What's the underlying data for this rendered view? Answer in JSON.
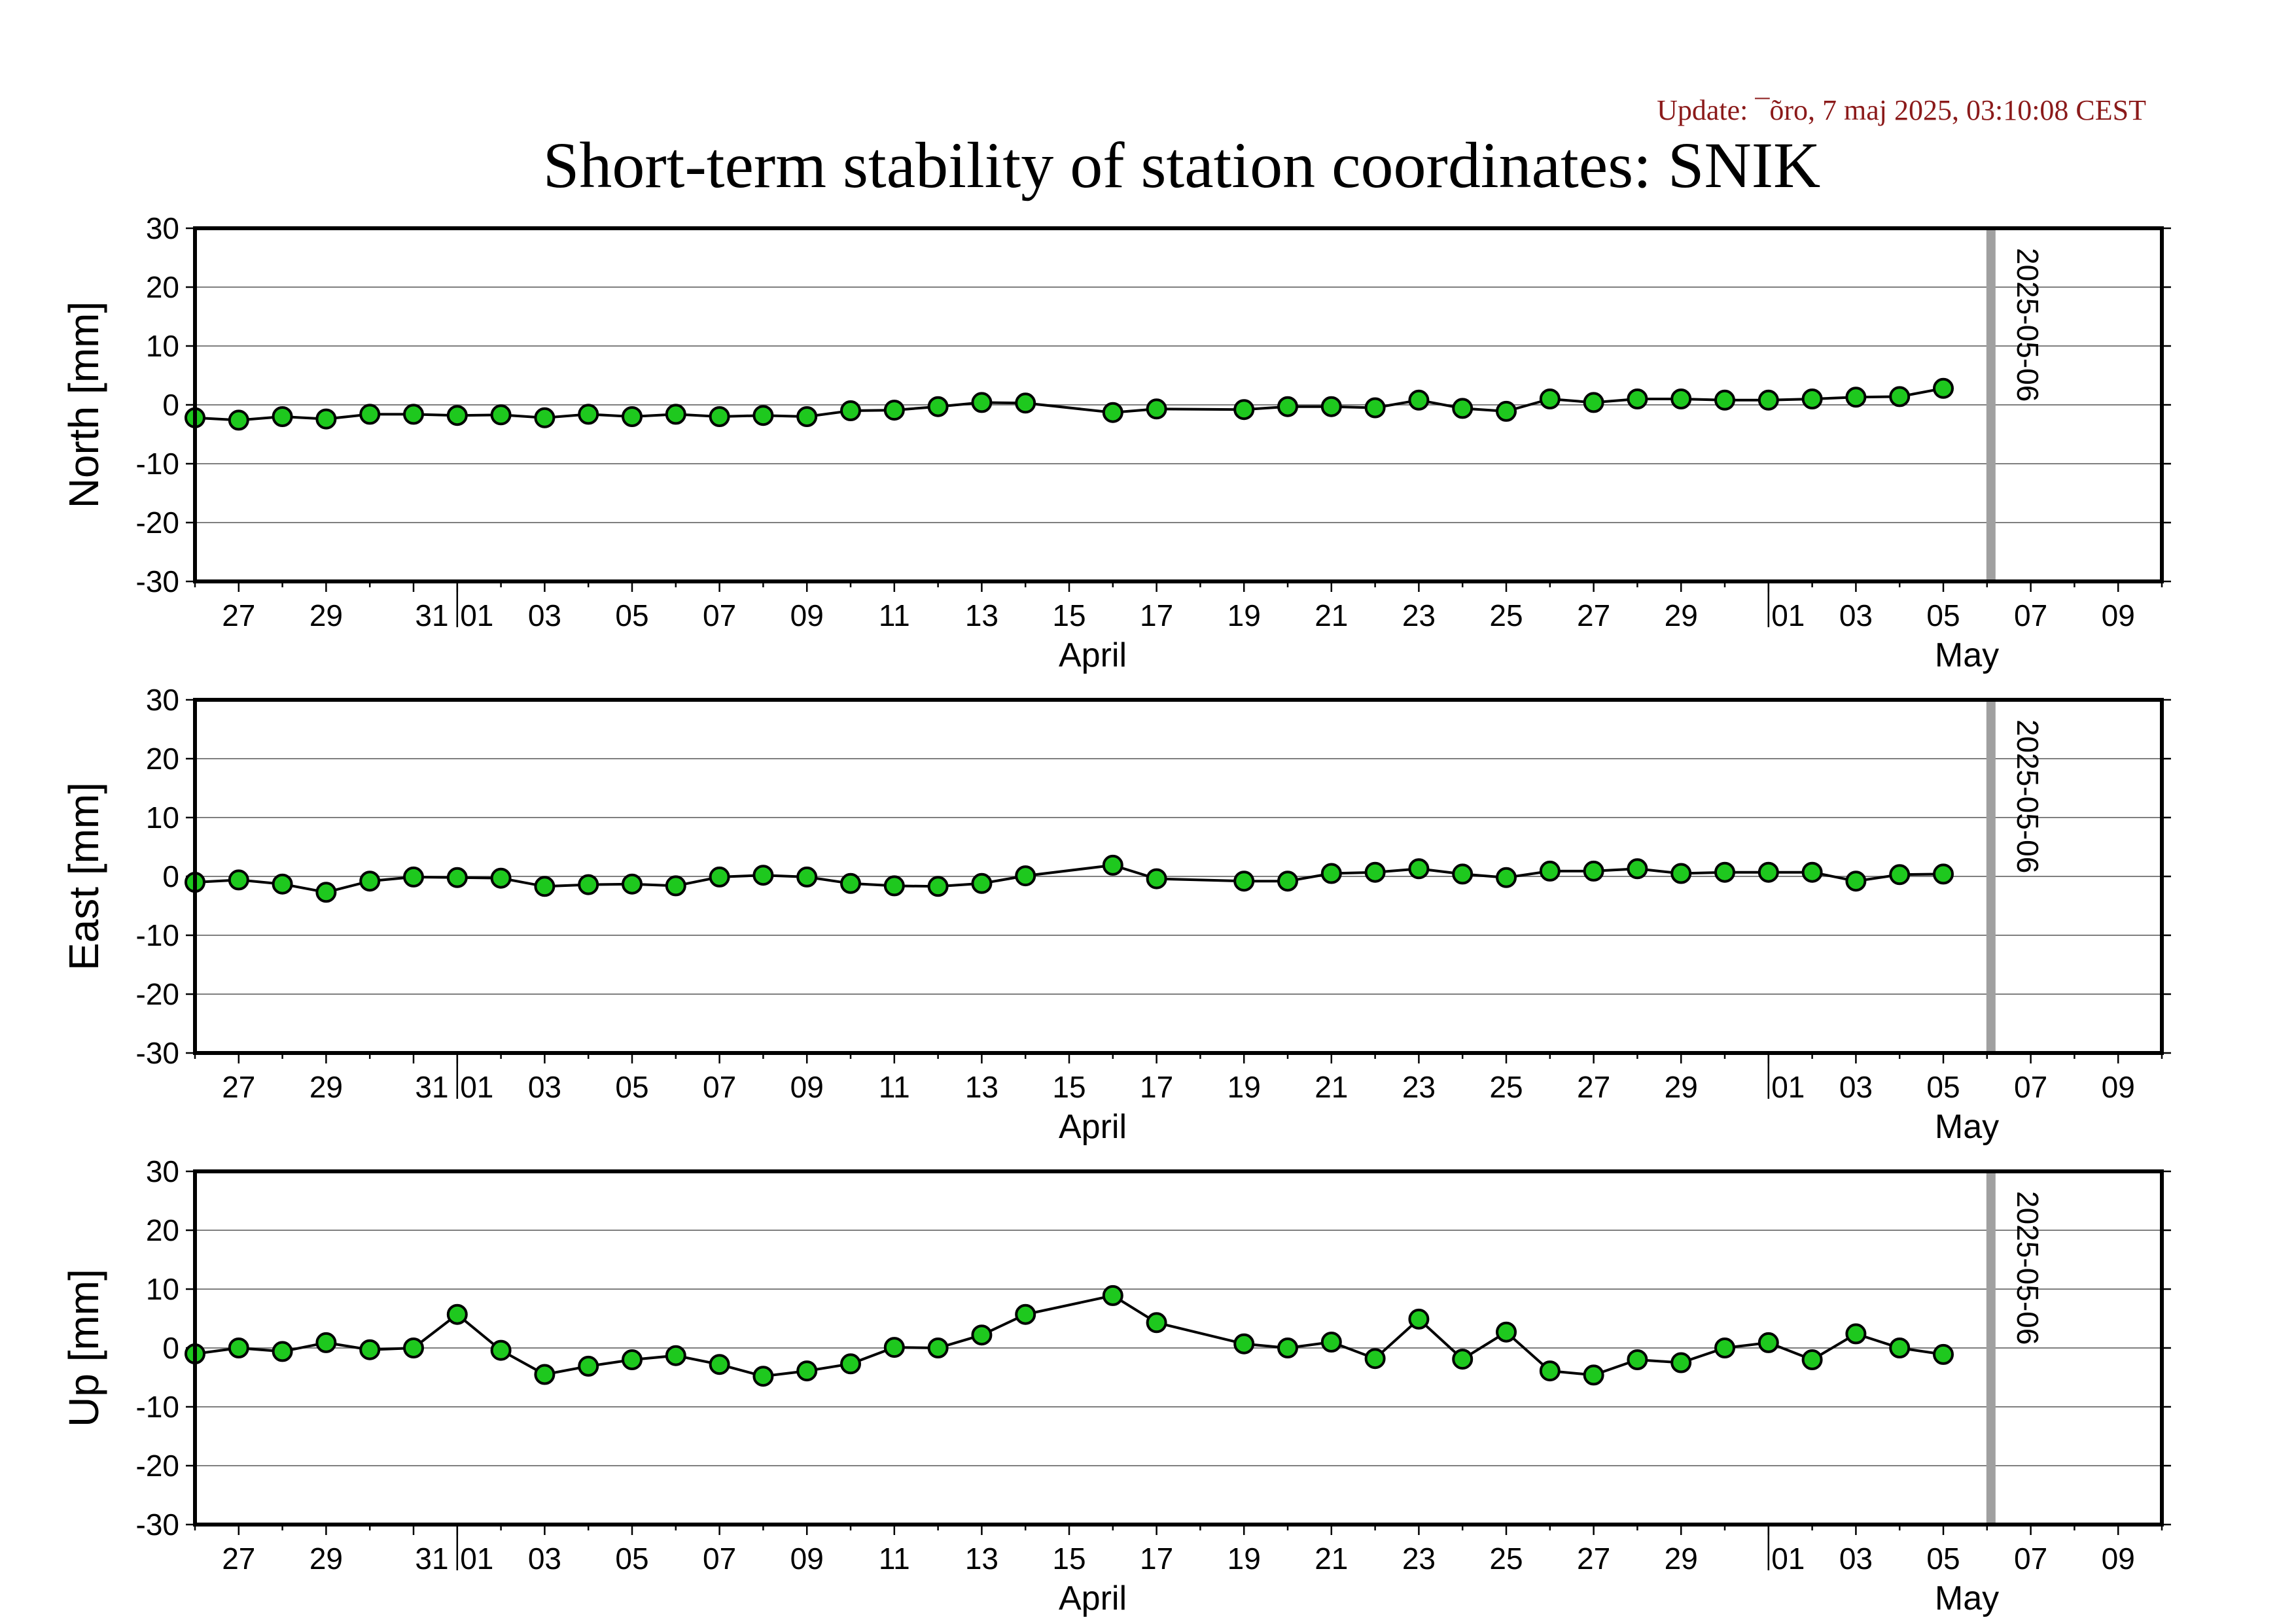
{
  "update_text": "Update: ¯õro, 7 maj 2025, 03:10:08 CEST",
  "title": "Short-term stability of station coordinates: SNIK",
  "colors": {
    "update_text": "#8b1a1a",
    "marker_fill": "#1ec81e",
    "marker_stroke": "#000000",
    "line": "#000000",
    "grid": "#7f7f7f",
    "marker_line_vertical": "#a0a0a0"
  },
  "chart_data": [
    {
      "type": "line",
      "ylabel": "North [mm]",
      "ylim": [
        -30,
        30
      ],
      "yticks": [
        -30,
        -20,
        -10,
        0,
        10,
        20,
        30
      ],
      "grid": true,
      "xlim": [
        "2025-03-26",
        "2025-05-10"
      ],
      "x_tick_labels": [
        "27",
        "29",
        "31",
        "01",
        "03",
        "05",
        "07",
        "09",
        "11",
        "13",
        "15",
        "17",
        "19",
        "21",
        "23",
        "25",
        "27",
        "29",
        "01",
        "03",
        "05",
        "07",
        "09"
      ],
      "month_labels": [
        "April",
        "May"
      ],
      "vertical_marker": {
        "date": "2025-05-06",
        "label": "2025-05-06"
      },
      "x": [
        "2025-03-26",
        "2025-03-27",
        "2025-03-28",
        "2025-03-29",
        "2025-03-30",
        "2025-03-31",
        "2025-04-01",
        "2025-04-02",
        "2025-04-03",
        "2025-04-04",
        "2025-04-05",
        "2025-04-06",
        "2025-04-07",
        "2025-04-08",
        "2025-04-09",
        "2025-04-10",
        "2025-04-11",
        "2025-04-12",
        "2025-04-13",
        "2025-04-14",
        "2025-04-16",
        "2025-04-17",
        "2025-04-19",
        "2025-04-20",
        "2025-04-21",
        "2025-04-22",
        "2025-04-23",
        "2025-04-24",
        "2025-04-25",
        "2025-04-26",
        "2025-04-27",
        "2025-04-28",
        "2025-04-29",
        "2025-04-30",
        "2025-05-01",
        "2025-05-02",
        "2025-05-03",
        "2025-05-04",
        "2025-05-05"
      ],
      "values": [
        -2.2,
        -2.6,
        -2.0,
        -2.4,
        -1.6,
        -1.6,
        -1.8,
        -1.7,
        -2.2,
        -1.6,
        -2.0,
        -1.6,
        -2.0,
        -1.8,
        -2.0,
        -1.0,
        -0.9,
        -0.3,
        0.4,
        0.3,
        -1.3,
        -0.7,
        -0.8,
        -0.3,
        -0.3,
        -0.5,
        0.8,
        -0.6,
        -1.1,
        1.0,
        0.4,
        1.0,
        1.0,
        0.8,
        0.8,
        1.0,
        1.3,
        1.4,
        2.8
      ]
    },
    {
      "type": "line",
      "ylabel": "East [mm]",
      "ylim": [
        -30,
        30
      ],
      "yticks": [
        -30,
        -20,
        -10,
        0,
        10,
        20,
        30
      ],
      "grid": true,
      "xlim": [
        "2025-03-26",
        "2025-05-10"
      ],
      "x_tick_labels": [
        "27",
        "29",
        "31",
        "01",
        "03",
        "05",
        "07",
        "09",
        "11",
        "13",
        "15",
        "17",
        "19",
        "21",
        "23",
        "25",
        "27",
        "29",
        "01",
        "03",
        "05",
        "07",
        "09"
      ],
      "month_labels": [
        "April",
        "May"
      ],
      "vertical_marker": {
        "date": "2025-05-06",
        "label": "2025-05-06"
      },
      "x": [
        "2025-03-26",
        "2025-03-27",
        "2025-03-28",
        "2025-03-29",
        "2025-03-30",
        "2025-03-31",
        "2025-04-01",
        "2025-04-02",
        "2025-04-03",
        "2025-04-04",
        "2025-04-05",
        "2025-04-06",
        "2025-04-07",
        "2025-04-08",
        "2025-04-09",
        "2025-04-10",
        "2025-04-11",
        "2025-04-12",
        "2025-04-13",
        "2025-04-14",
        "2025-04-16",
        "2025-04-17",
        "2025-04-19",
        "2025-04-20",
        "2025-04-21",
        "2025-04-22",
        "2025-04-23",
        "2025-04-24",
        "2025-04-25",
        "2025-04-26",
        "2025-04-27",
        "2025-04-28",
        "2025-04-29",
        "2025-04-30",
        "2025-05-01",
        "2025-05-02",
        "2025-05-03",
        "2025-05-04",
        "2025-05-05"
      ],
      "values": [
        -1.0,
        -0.6,
        -1.3,
        -2.7,
        -0.8,
        -0.1,
        -0.2,
        -0.3,
        -1.7,
        -1.4,
        -1.3,
        -1.6,
        -0.1,
        0.2,
        -0.1,
        -1.2,
        -1.6,
        -1.7,
        -1.2,
        0.1,
        1.9,
        -0.4,
        -0.8,
        -0.8,
        0.5,
        0.7,
        1.3,
        0.4,
        -0.2,
        0.9,
        0.9,
        1.3,
        0.5,
        0.7,
        0.7,
        0.7,
        -0.8,
        0.3,
        0.4
      ]
    },
    {
      "type": "line",
      "ylabel": "Up [mm]",
      "ylim": [
        -30,
        30
      ],
      "yticks": [
        -30,
        -20,
        -10,
        0,
        10,
        20,
        30
      ],
      "grid": true,
      "xlim": [
        "2025-03-26",
        "2025-05-10"
      ],
      "x_tick_labels": [
        "27",
        "29",
        "31",
        "01",
        "03",
        "05",
        "07",
        "09",
        "11",
        "13",
        "15",
        "17",
        "19",
        "21",
        "23",
        "25",
        "27",
        "29",
        "01",
        "03",
        "05",
        "07",
        "09"
      ],
      "month_labels": [
        "April",
        "May"
      ],
      "vertical_marker": {
        "date": "2025-05-06",
        "label": "2025-05-06"
      },
      "x": [
        "2025-03-26",
        "2025-03-27",
        "2025-03-28",
        "2025-03-29",
        "2025-03-30",
        "2025-03-31",
        "2025-04-01",
        "2025-04-02",
        "2025-04-03",
        "2025-04-04",
        "2025-04-05",
        "2025-04-06",
        "2025-04-07",
        "2025-04-08",
        "2025-04-09",
        "2025-04-10",
        "2025-04-11",
        "2025-04-12",
        "2025-04-13",
        "2025-04-14",
        "2025-04-16",
        "2025-04-17",
        "2025-04-19",
        "2025-04-20",
        "2025-04-21",
        "2025-04-22",
        "2025-04-23",
        "2025-04-24",
        "2025-04-25",
        "2025-04-26",
        "2025-04-27",
        "2025-04-28",
        "2025-04-29",
        "2025-04-30",
        "2025-05-01",
        "2025-05-02",
        "2025-05-03",
        "2025-05-04",
        "2025-05-05"
      ],
      "values": [
        -1.0,
        0.0,
        -0.6,
        0.9,
        -0.3,
        0.0,
        5.7,
        -0.4,
        -4.5,
        -3.1,
        -2.0,
        -1.3,
        -2.8,
        -4.8,
        -3.9,
        -2.7,
        0.1,
        0.0,
        2.2,
        5.7,
        8.9,
        4.3,
        0.7,
        0.0,
        1.0,
        -1.8,
        4.9,
        -1.9,
        2.7,
        -3.9,
        -4.6,
        -2.0,
        -2.5,
        0.0,
        0.9,
        -2.0,
        2.4,
        0.0,
        -1.1
      ]
    }
  ]
}
